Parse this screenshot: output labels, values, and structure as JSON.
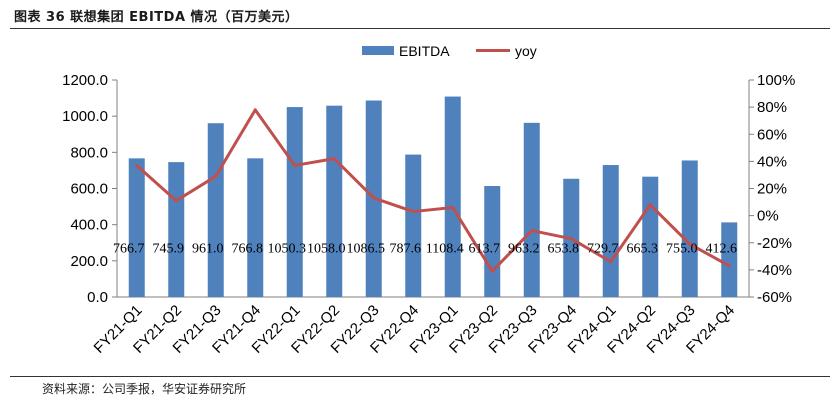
{
  "page": {
    "title": "图表 36 联想集团 EBITDA 情况（百万美元）",
    "source": "资料来源：公司季报，华安证券研究所"
  },
  "chart_data": {
    "type": "bar",
    "categories": [
      "FY21-Q1",
      "FY21-Q2",
      "FY21-Q3",
      "FY21-Q4",
      "FY22-Q1",
      "FY22-Q2",
      "FY22-Q3",
      "FY22-Q4",
      "FY23-Q1",
      "FY23-Q2",
      "FY23-Q3",
      "FY23-Q4",
      "FY24-Q1",
      "FY24-Q2",
      "FY24-Q3",
      "FY24-Q4"
    ],
    "series": [
      {
        "name": "EBITDA",
        "type": "bar",
        "axis": "left",
        "color": "#4f81bd",
        "values": [
          766.7,
          745.9,
          961.0,
          766.8,
          1050.3,
          1058.0,
          1086.5,
          787.6,
          1108.4,
          613.7,
          963.2,
          653.8,
          729.7,
          665.3,
          755.0,
          412.6
        ],
        "labels": [
          "766.7",
          "745.9",
          "961.0",
          "766.8",
          "1050.3",
          "1058.0",
          "1086.5",
          "787.6",
          "1108.4",
          "613.7",
          "963.2",
          "653.8",
          "729.7",
          "665.3",
          "755.0",
          "412.6"
        ]
      },
      {
        "name": "yoy",
        "type": "line",
        "axis": "right",
        "color": "#c0504d",
        "values": [
          37,
          11,
          29,
          78,
          37,
          42,
          13,
          3,
          6,
          -41,
          -11,
          -17,
          -34,
          8,
          -21,
          -37
        ]
      }
    ],
    "y_left": {
      "min": 0,
      "max": 1200,
      "ticks": [
        "0.0",
        "200.0",
        "400.0",
        "600.0",
        "800.0",
        "1000.0",
        "1200.0"
      ]
    },
    "y_right": {
      "min": -60,
      "max": 100,
      "ticks": [
        "-60%",
        "-40%",
        "-20%",
        "0%",
        "20%",
        "40%",
        "60%",
        "80%",
        "100%"
      ]
    },
    "legend": "top-center",
    "grid": false
  }
}
